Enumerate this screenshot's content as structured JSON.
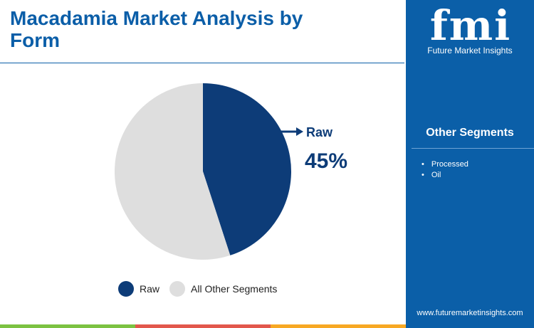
{
  "header": {
    "title": "Macadamia Market Analysis by Form"
  },
  "brand": {
    "logo_text": "fmi",
    "logo_subtitle": "Future Market Insights",
    "website": "www.futuremarketinsights.com"
  },
  "sidebar": {
    "heading": "Other Segments",
    "items": [
      "Processed",
      "Oil"
    ]
  },
  "callout": {
    "label": "Raw",
    "value": "45%"
  },
  "colors": {
    "accent": "#0b5ea8",
    "raw": "#0d3c78",
    "other": "#dedede",
    "sidebar": "#0b5fa8"
  },
  "bottom_bar_colors": [
    "#7cc242",
    "#e2574c",
    "#f7a823"
  ],
  "chart_data": {
    "type": "pie",
    "title": "Macadamia Market Analysis by Form",
    "slices": [
      {
        "label": "Raw",
        "value": 45,
        "color": "#0d3c78"
      },
      {
        "label": "All Other Segments",
        "value": 55,
        "color": "#dedede"
      }
    ],
    "legend": {
      "placement": "bottom",
      "entries": [
        "Raw",
        "All Other Segments"
      ]
    }
  }
}
